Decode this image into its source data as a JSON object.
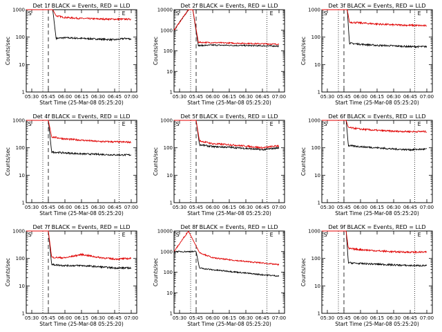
{
  "chart_data": [
    {
      "type": "line",
      "title": "Det 1f BLACK = Events, RED = LLD",
      "xlabel": "Start Time (25-Mar-08 05:25:20)",
      "ylabel": "Counts/sec",
      "x_ticks": [
        "05:30",
        "05:45",
        "06:00",
        "06:15",
        "06:30",
        "06:45",
        "07:00"
      ],
      "y_ticks": [
        "1",
        "10",
        "100",
        "1000"
      ],
      "ylim": [
        1,
        1000
      ],
      "yscale": "log",
      "annotations": [
        "S",
        "E"
      ],
      "series": [
        {
          "name": "BLACK = Events",
          "color": "#000000",
          "x": [
            "05:25",
            "05:49",
            "05:52",
            "06:00",
            "06:15",
            "06:30",
            "06:45",
            "06:55",
            "07:00"
          ],
          "values": [
            1000,
            1000,
            90,
            95,
            90,
            85,
            80,
            90,
            85
          ]
        },
        {
          "name": "RED = LLD",
          "color": "#e00000",
          "x": [
            "05:25",
            "05:49",
            "05:52",
            "06:00",
            "06:15",
            "06:30",
            "06:45",
            "06:55",
            "07:00"
          ],
          "values": [
            1000,
            1000,
            600,
            520,
            480,
            460,
            450,
            450,
            450
          ]
        }
      ]
    },
    {
      "type": "line",
      "title": "Det 2f BLACK = Events, RED = LLD",
      "xlabel": "Start Time (25-Mar-08 05:25:20)",
      "ylabel": "Counts/sec",
      "x_ticks": [
        "05:30",
        "05:45",
        "06:00",
        "06:15",
        "06:30",
        "06:45",
        "07:00"
      ],
      "y_ticks": [
        "1",
        "10",
        "100",
        "1000",
        "10000"
      ],
      "ylim": [
        1,
        10000
      ],
      "yscale": "log",
      "annotations": [
        "S",
        "E"
      ],
      "series": [
        {
          "name": "BLACK = Events",
          "color": "#000000",
          "x": [
            "05:25",
            "05:38",
            "05:42",
            "05:47",
            "06:00",
            "06:15",
            "06:30",
            "06:45",
            "07:00"
          ],
          "values": [
            1000,
            10000,
            10000,
            180,
            190,
            185,
            180,
            175,
            170
          ]
        },
        {
          "name": "RED = LLD",
          "color": "#e00000",
          "x": [
            "05:25",
            "05:38",
            "05:42",
            "05:47",
            "06:00",
            "06:15",
            "06:30",
            "06:45",
            "07:00"
          ],
          "values": [
            1000,
            10000,
            10000,
            260,
            250,
            240,
            230,
            220,
            210
          ]
        }
      ]
    },
    {
      "type": "line",
      "title": "Det 3f BLACK = Events, RED = LLD",
      "xlabel": "Start Time (25-Mar-08 05:25:20)",
      "ylabel": "Counts/sec",
      "x_ticks": [
        "05:30",
        "05:45",
        "06:00",
        "06:15",
        "06:30",
        "06:45",
        "07:00"
      ],
      "y_ticks": [
        "1",
        "10",
        "100",
        "1000"
      ],
      "ylim": [
        1,
        1000
      ],
      "yscale": "log",
      "annotations": [
        "S",
        "E"
      ],
      "series": [
        {
          "name": "BLACK = Events",
          "color": "#000000",
          "x": [
            "05:25",
            "05:48",
            "05:50",
            "06:00",
            "06:15",
            "06:30",
            "06:45",
            "07:00"
          ],
          "values": [
            1000,
            1000,
            60,
            55,
            50,
            48,
            45,
            45
          ]
        },
        {
          "name": "RED = LLD",
          "color": "#e00000",
          "x": [
            "05:25",
            "05:48",
            "05:50",
            "06:00",
            "06:15",
            "06:30",
            "06:45",
            "07:00"
          ],
          "values": [
            1000,
            1000,
            350,
            330,
            300,
            280,
            270,
            260
          ]
        }
      ]
    },
    {
      "type": "line",
      "title": "Det 4f BLACK = Events, RED = LLD",
      "xlabel": "Start Time (25-Mar-08 05:25:20)",
      "ylabel": "Counts/sec",
      "x_ticks": [
        "05:30",
        "05:45",
        "06:00",
        "06:15",
        "06:30",
        "06:45",
        "07:00"
      ],
      "y_ticks": [
        "1",
        "10",
        "100",
        "1000"
      ],
      "ylim": [
        1,
        1000
      ],
      "yscale": "log",
      "annotations": [
        "S",
        "E"
      ],
      "series": [
        {
          "name": "BLACK = Events",
          "color": "#000000",
          "x": [
            "05:25",
            "05:45",
            "05:48",
            "06:00",
            "06:15",
            "06:30",
            "06:45",
            "07:00"
          ],
          "values": [
            1000,
            1000,
            70,
            65,
            60,
            58,
            55,
            55
          ]
        },
        {
          "name": "RED = LLD",
          "color": "#e00000",
          "x": [
            "05:25",
            "05:45",
            "05:48",
            "06:00",
            "06:15",
            "06:30",
            "06:45",
            "07:00"
          ],
          "values": [
            1000,
            1000,
            250,
            210,
            190,
            170,
            165,
            160
          ]
        }
      ]
    },
    {
      "type": "line",
      "title": "Det 5f BLACK = Events, RED = LLD",
      "xlabel": "Start Time (25-Mar-08 05:25:20)",
      "ylabel": "Counts/sec",
      "x_ticks": [
        "05:30",
        "05:45",
        "06:00",
        "06:15",
        "06:30",
        "06:45",
        "07:00"
      ],
      "y_ticks": [
        "1",
        "10",
        "100",
        "1000"
      ],
      "ylim": [
        1,
        1000
      ],
      "yscale": "log",
      "annotations": [
        "S",
        "E"
      ],
      "series": [
        {
          "name": "BLACK = Events",
          "color": "#000000",
          "x": [
            "05:25",
            "05:45",
            "05:48",
            "06:00",
            "06:15",
            "06:30",
            "06:45",
            "07:00"
          ],
          "values": [
            1000,
            1000,
            130,
            110,
            105,
            95,
            85,
            100
          ]
        },
        {
          "name": "RED = LLD",
          "color": "#e00000",
          "x": [
            "05:25",
            "05:45",
            "05:48",
            "06:00",
            "06:15",
            "06:30",
            "06:45",
            "07:00"
          ],
          "values": [
            1000,
            1000,
            180,
            140,
            130,
            115,
            100,
            120
          ]
        }
      ]
    },
    {
      "type": "line",
      "title": "Det 6f BLACK = Events, RED = LLD",
      "xlabel": "Start Time (25-Mar-08 05:25:20)",
      "ylabel": "Counts/sec",
      "x_ticks": [
        "05:30",
        "05:45",
        "06:00",
        "06:15",
        "06:30",
        "06:45",
        "07:00"
      ],
      "y_ticks": [
        "1",
        "10",
        "100",
        "1000"
      ],
      "ylim": [
        1,
        1000
      ],
      "yscale": "log",
      "annotations": [
        "S",
        "E"
      ],
      "series": [
        {
          "name": "BLACK = Events",
          "color": "#000000",
          "x": [
            "05:25",
            "05:47",
            "05:49",
            "06:00",
            "06:15",
            "06:30",
            "06:45",
            "07:00"
          ],
          "values": [
            1000,
            1000,
            120,
            110,
            100,
            90,
            85,
            90
          ]
        },
        {
          "name": "RED = LLD",
          "color": "#e00000",
          "x": [
            "05:25",
            "05:47",
            "05:49",
            "06:00",
            "06:15",
            "06:30",
            "06:45",
            "07:00"
          ],
          "values": [
            1000,
            1000,
            550,
            480,
            430,
            400,
            390,
            390
          ]
        }
      ]
    },
    {
      "type": "line",
      "title": "Det 7f BLACK = Events, RED = LLD",
      "xlabel": "Start Time (25-Mar-08 05:25:20)",
      "ylabel": "Counts/sec",
      "x_ticks": [
        "05:30",
        "05:45",
        "06:00",
        "06:15",
        "06:30",
        "06:45",
        "07:00"
      ],
      "y_ticks": [
        "1",
        "10",
        "100",
        "1000"
      ],
      "ylim": [
        1,
        1000
      ],
      "yscale": "log",
      "annotations": [
        "S",
        "E"
      ],
      "series": [
        {
          "name": "BLACK = Events",
          "color": "#000000",
          "x": [
            "05:25",
            "05:45",
            "05:48",
            "06:00",
            "06:15",
            "06:30",
            "06:45",
            "07:00"
          ],
          "values": [
            1000,
            1000,
            60,
            55,
            55,
            50,
            45,
            45
          ]
        },
        {
          "name": "RED = LLD",
          "color": "#e00000",
          "x": [
            "05:25",
            "05:45",
            "05:48",
            "06:00",
            "06:15",
            "06:30",
            "06:45",
            "07:00"
          ],
          "values": [
            1000,
            1000,
            110,
            105,
            140,
            110,
            95,
            100
          ]
        }
      ]
    },
    {
      "type": "line",
      "title": "Det 8f BLACK = Events, RED = LLD",
      "xlabel": "Start Time (25-Mar-08 05:25:20)",
      "ylabel": "Counts/sec",
      "x_ticks": [
        "05:30",
        "05:45",
        "06:00",
        "06:15",
        "06:30",
        "06:45",
        "07:00"
      ],
      "y_ticks": [
        "1",
        "10",
        "100",
        "1000",
        "10000"
      ],
      "ylim": [
        1,
        10000
      ],
      "yscale": "log",
      "annotations": [
        "S",
        "E"
      ],
      "series": [
        {
          "name": "BLACK = Events",
          "color": "#000000",
          "x": [
            "05:25",
            "05:45",
            "05:48",
            "06:00",
            "06:15",
            "06:30",
            "06:45",
            "07:00"
          ],
          "values": [
            1000,
            1000,
            160,
            130,
            110,
            90,
            75,
            65
          ]
        },
        {
          "name": "RED = LLD",
          "color": "#e00000",
          "x": [
            "05:25",
            "05:38",
            "05:48",
            "06:00",
            "06:15",
            "06:30",
            "06:45",
            "07:00"
          ],
          "values": [
            1000,
            10000,
            900,
            500,
            400,
            330,
            280,
            230
          ]
        }
      ]
    },
    {
      "type": "line",
      "title": "Det 9f BLACK = Events, RED = LLD",
      "xlabel": "Start Time (25-Mar-08 05:25:20)",
      "ylabel": "Counts/sec",
      "x_ticks": [
        "05:30",
        "05:45",
        "06:00",
        "06:15",
        "06:30",
        "06:45",
        "07:00"
      ],
      "y_ticks": [
        "1",
        "10",
        "100",
        "1000"
      ],
      "ylim": [
        1,
        1000
      ],
      "yscale": "log",
      "annotations": [
        "S",
        "E"
      ],
      "series": [
        {
          "name": "BLACK = Events",
          "color": "#000000",
          "x": [
            "05:25",
            "05:47",
            "05:49",
            "06:00",
            "06:15",
            "06:30",
            "06:45",
            "07:00"
          ],
          "values": [
            1000,
            1000,
            70,
            65,
            62,
            58,
            55,
            55
          ]
        },
        {
          "name": "RED = LLD",
          "color": "#e00000",
          "x": [
            "05:25",
            "05:47",
            "05:49",
            "06:00",
            "06:15",
            "06:30",
            "06:45",
            "07:00"
          ],
          "values": [
            1000,
            1000,
            230,
            210,
            190,
            175,
            170,
            170
          ]
        }
      ]
    }
  ]
}
